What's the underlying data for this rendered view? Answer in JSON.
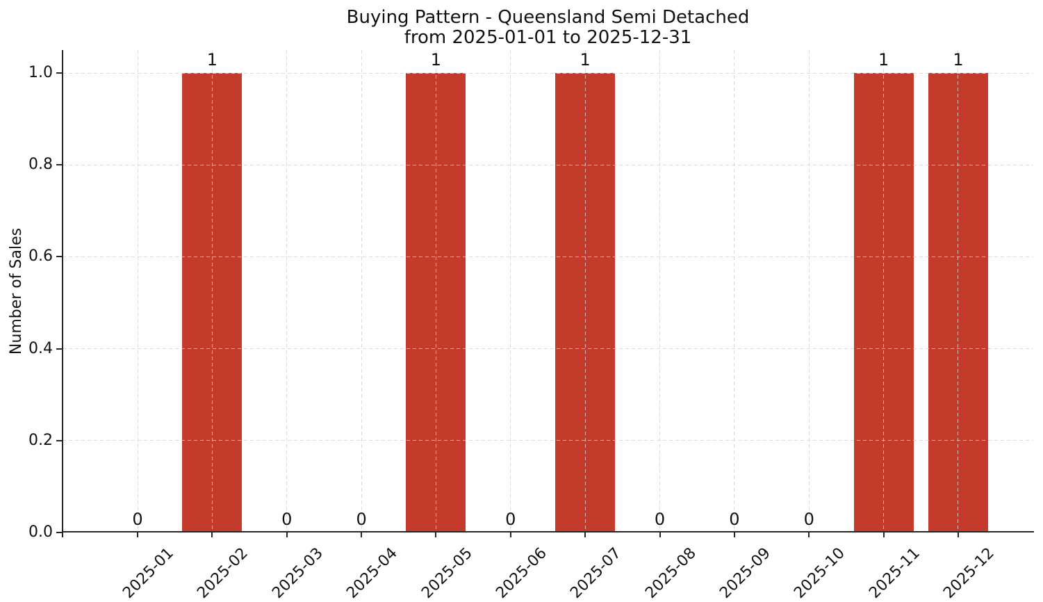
{
  "chart_data": {
    "type": "bar",
    "title": "Buying Pattern - Queensland Semi Detached",
    "subtitle": "from 2025-01-01 to 2025-12-31",
    "categories": [
      "2025-01",
      "2025-02",
      "2025-03",
      "2025-04",
      "2025-05",
      "2025-06",
      "2025-07",
      "2025-08",
      "2025-09",
      "2025-10",
      "2025-11",
      "2025-12"
    ],
    "values": [
      0,
      1,
      0,
      0,
      1,
      0,
      1,
      0,
      0,
      0,
      1,
      1
    ],
    "bar_value_labels": [
      "0",
      "1",
      "0",
      "0",
      "1",
      "0",
      "1",
      "0",
      "0",
      "0",
      "1",
      "1"
    ],
    "xlabel": "",
    "ylabel": "Number of Sales",
    "ylim": [
      0,
      1.05
    ],
    "yticks": [
      0.0,
      0.2,
      0.4,
      0.6,
      0.8,
      1.0
    ],
    "ytick_labels": [
      "0.0",
      "0.2",
      "0.4",
      "0.6",
      "0.8",
      "1.0"
    ],
    "bar_color": "#c43b2b",
    "grid": true,
    "grid_line_style": "dashed",
    "legend_position": "none"
  }
}
